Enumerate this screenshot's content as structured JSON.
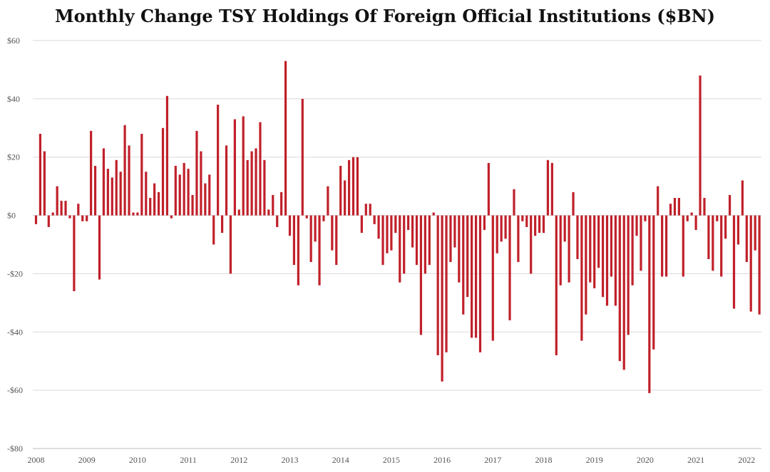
{
  "chart_data": {
    "type": "bar",
    "title": "Monthly Change TSY Holdings Of Foreign Official Institutions ($BN)",
    "xlabel": "",
    "ylabel": "",
    "ylim": [
      -80,
      60
    ],
    "y_ticks": [
      60,
      40,
      20,
      0,
      -20,
      -40,
      -60,
      -80
    ],
    "y_tick_labels": [
      "$60",
      "$40",
      "$20",
      "$0",
      "-$20",
      "-$40",
      "-$60",
      "-$80"
    ],
    "x_year_labels": [
      "2008",
      "2009",
      "2010",
      "2011",
      "2012",
      "2013",
      "2014",
      "2015",
      "2016",
      "2017",
      "2018",
      "2019",
      "2020",
      "2021",
      "2022"
    ],
    "start": "2008-01",
    "bar_color": "#c0202a",
    "series": [
      {
        "name": "Monthly Change ($BN)",
        "values": [
          -3,
          28,
          22,
          -4,
          1,
          10,
          5,
          5,
          -1,
          -26,
          4,
          -2,
          -2,
          29,
          17,
          -22,
          23,
          16,
          13,
          19,
          15,
          31,
          24,
          1,
          1,
          28,
          15,
          6,
          11,
          8,
          30,
          41,
          -1,
          17,
          14,
          18,
          16,
          7,
          29,
          22,
          11,
          14,
          -10,
          38,
          -6,
          24,
          -20,
          33,
          2,
          34,
          19,
          22,
          23,
          32,
          19,
          2,
          7,
          -4,
          8,
          53,
          -7,
          -17,
          -24,
          40,
          -1,
          -16,
          -9,
          -24,
          -2,
          10,
          -12,
          -17,
          17,
          12,
          19,
          20,
          20,
          -6,
          4,
          4,
          -3,
          -8,
          -17,
          -13,
          -12,
          -6,
          -23,
          -20,
          -5,
          -11,
          -17,
          -41,
          -20,
          -17,
          1,
          -48,
          -57,
          -47,
          -16,
          -11,
          -23,
          -34,
          -28,
          -42,
          -42,
          -47,
          -5,
          18,
          -43,
          -13,
          -9,
          -8,
          -36,
          9,
          -16,
          -2,
          -4,
          -20,
          -7,
          -6,
          -6,
          19,
          18,
          -48,
          -24,
          -9,
          -23,
          8,
          -15,
          -43,
          -34,
          -23,
          -25,
          -18,
          -28,
          -31,
          -21,
          -31,
          -50,
          -53,
          -41,
          -24,
          -7,
          -19,
          -2,
          -61,
          -46,
          10,
          -21,
          -21,
          4,
          6,
          6,
          -21,
          -2,
          1,
          -5,
          48,
          6,
          -15,
          -19,
          -2,
          -21,
          -8,
          7,
          -32,
          -10,
          12,
          -16,
          -33,
          -12,
          -34
        ]
      }
    ]
  }
}
